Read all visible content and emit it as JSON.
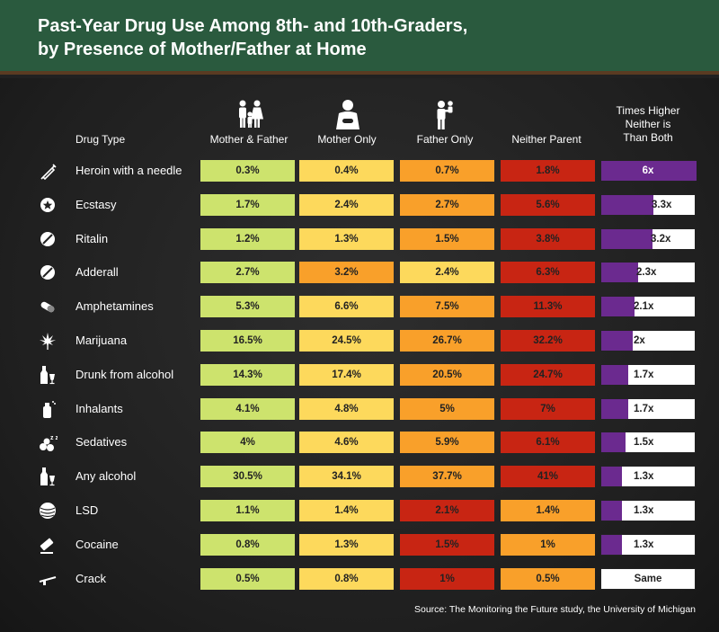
{
  "title_line1": "Past-Year Drug Use Among 8th- and 10th-Graders,",
  "title_line2": "by Presence of Mother/Father at Home",
  "headers": {
    "drug_type": "Drug Type",
    "mother_father": "Mother & Father",
    "mother_only": "Mother Only",
    "father_only": "Father Only",
    "neither": "Neither Parent",
    "times_line1": "Times Higher",
    "times_line2": "Neither is",
    "times_line3": "Than Both"
  },
  "source": "Source: The Monitoring the Future study, the University of Michigan",
  "colors": {
    "green": "#cde36d",
    "yellow": "#fdd95c",
    "orange": "#f9a02a",
    "red": "#c82513",
    "purple": "#6b2a8f"
  },
  "chart_data": {
    "type": "table",
    "columns": [
      "Mother & Father",
      "Mother Only",
      "Father Only",
      "Neither Parent",
      "Times Higher Neither is Than Both"
    ],
    "rows": [
      {
        "drug": "Heroin with a needle",
        "icon": "syringe-icon",
        "values": [
          "0.3%",
          "0.4%",
          "0.7%",
          "1.8%"
        ],
        "colors": [
          "green",
          "yellow",
          "orange",
          "red"
        ],
        "ratio": 6,
        "ratio_label": "6x"
      },
      {
        "drug": "Ecstasy",
        "icon": "star-pill-icon",
        "values": [
          "1.7%",
          "2.4%",
          "2.7%",
          "5.6%"
        ],
        "colors": [
          "green",
          "yellow",
          "orange",
          "red"
        ],
        "ratio": 3.3,
        "ratio_label": "3.3x"
      },
      {
        "drug": "Ritalin",
        "icon": "pill-icon",
        "values": [
          "1.2%",
          "1.3%",
          "1.5%",
          "3.8%"
        ],
        "colors": [
          "green",
          "yellow",
          "orange",
          "red"
        ],
        "ratio": 3.2,
        "ratio_label": "3.2x"
      },
      {
        "drug": "Adderall",
        "icon": "pill-icon",
        "values": [
          "2.7%",
          "3.2%",
          "2.4%",
          "6.3%"
        ],
        "colors": [
          "green",
          "orange",
          "yellow",
          "red"
        ],
        "ratio": 2.3,
        "ratio_label": "2.3x"
      },
      {
        "drug": "Amphetamines",
        "icon": "capsule-icon",
        "values": [
          "5.3%",
          "6.6%",
          "7.5%",
          "11.3%"
        ],
        "colors": [
          "green",
          "yellow",
          "orange",
          "red"
        ],
        "ratio": 2.1,
        "ratio_label": "2.1x"
      },
      {
        "drug": "Marijuana",
        "icon": "leaf-icon",
        "values": [
          "16.5%",
          "24.5%",
          "26.7%",
          "32.2%"
        ],
        "colors": [
          "green",
          "yellow",
          "orange",
          "red"
        ],
        "ratio": 2,
        "ratio_label": "2x"
      },
      {
        "drug": "Drunk from alcohol",
        "icon": "bottle-glass-icon",
        "values": [
          "14.3%",
          "17.4%",
          "20.5%",
          "24.7%"
        ],
        "colors": [
          "green",
          "yellow",
          "orange",
          "red"
        ],
        "ratio": 1.7,
        "ratio_label": "1.7x"
      },
      {
        "drug": "Inhalants",
        "icon": "spray-can-icon",
        "values": [
          "4.1%",
          "4.8%",
          "5%",
          "7%"
        ],
        "colors": [
          "green",
          "yellow",
          "orange",
          "red"
        ],
        "ratio": 1.7,
        "ratio_label": "1.7x"
      },
      {
        "drug": "Sedatives",
        "icon": "pills-zzz-icon",
        "values": [
          "4%",
          "4.6%",
          "5.9%",
          "6.1%"
        ],
        "colors": [
          "green",
          "yellow",
          "orange",
          "red"
        ],
        "ratio": 1.5,
        "ratio_label": "1.5x"
      },
      {
        "drug": "Any alcohol",
        "icon": "bottle-glass-icon",
        "values": [
          "30.5%",
          "34.1%",
          "37.7%",
          "41%"
        ],
        "colors": [
          "green",
          "yellow",
          "orange",
          "red"
        ],
        "ratio": 1.3,
        "ratio_label": "1.3x"
      },
      {
        "drug": "LSD",
        "icon": "swirl-icon",
        "values": [
          "1.1%",
          "1.4%",
          "2.1%",
          "1.4%"
        ],
        "colors": [
          "green",
          "yellow",
          "red",
          "orange"
        ],
        "ratio": 1.3,
        "ratio_label": "1.3x"
      },
      {
        "drug": "Cocaine",
        "icon": "razor-icon",
        "values": [
          "0.8%",
          "1.3%",
          "1.5%",
          "1%"
        ],
        "colors": [
          "green",
          "yellow",
          "red",
          "orange"
        ],
        "ratio": 1.3,
        "ratio_label": "1.3x"
      },
      {
        "drug": "Crack",
        "icon": "pipe-icon",
        "values": [
          "0.5%",
          "0.8%",
          "1%",
          "0.5%"
        ],
        "colors": [
          "green",
          "yellow",
          "red",
          "orange"
        ],
        "ratio": null,
        "ratio_label": "Same"
      }
    ]
  }
}
